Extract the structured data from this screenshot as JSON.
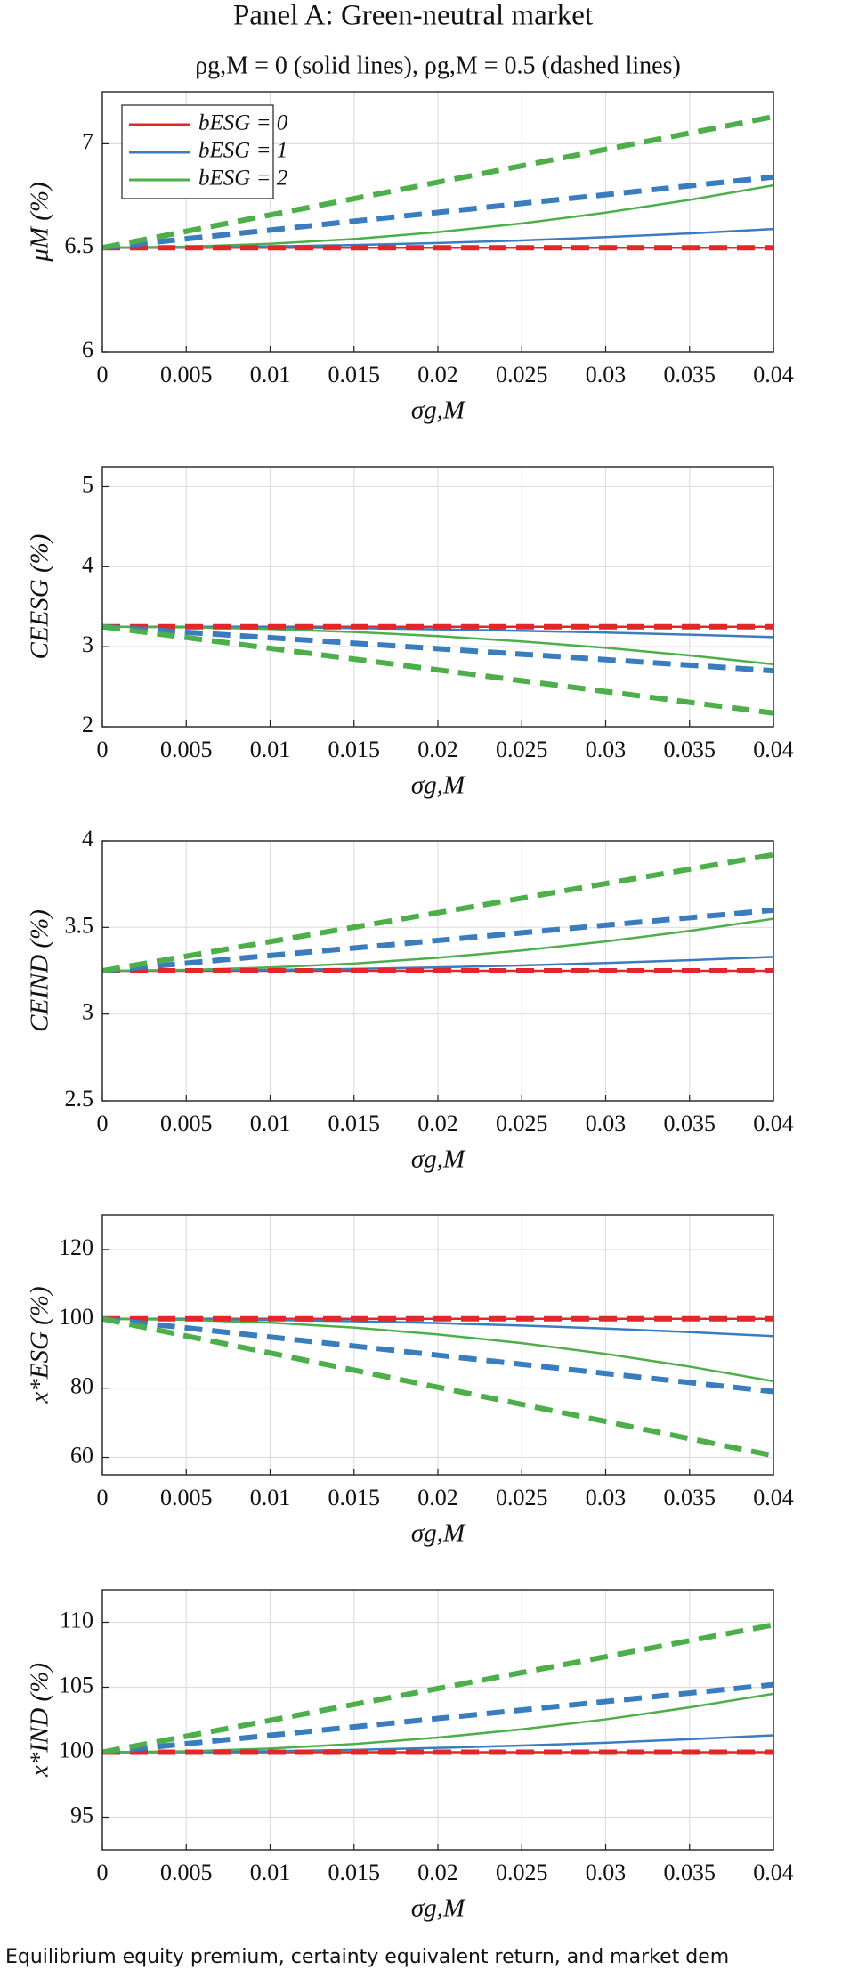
{
  "title": "Panel A: Green-neutral market",
  "subtitle": "ρg,M = 0 (solid lines), ρg,M = 0.5 (dashed lines)",
  "caption": "Equilibrium equity premium, certainty equivalent return, and market dem",
  "chart_data": [
    {
      "type": "line",
      "ylabel": "μM (%)",
      "xlabel": "σg,M",
      "x": [
        0,
        0.005,
        0.01,
        0.015,
        0.02,
        0.025,
        0.03,
        0.035,
        0.04
      ],
      "xlim": [
        0,
        0.04
      ],
      "xticks": [
        0,
        0.005,
        0.01,
        0.015,
        0.02,
        0.025,
        0.03,
        0.035,
        0.04
      ],
      "ylim": [
        6,
        7.25
      ],
      "yticks": [
        6,
        6.5,
        7
      ],
      "grid": true,
      "legend": "upper left",
      "series": [
        {
          "name": "bESG = 0",
          "color": "#e3262a",
          "dashed": false,
          "values": [
            6.5,
            6.5,
            6.5,
            6.5,
            6.5,
            6.5,
            6.5,
            6.5,
            6.5
          ]
        },
        {
          "name": "bESG = 1",
          "color": "#3a7dbf",
          "dashed": false,
          "values": [
            6.5,
            6.501,
            6.506,
            6.513,
            6.523,
            6.535,
            6.551,
            6.569,
            6.59
          ]
        },
        {
          "name": "bESG = 2",
          "color": "#4daf4a",
          "dashed": false,
          "values": [
            6.5,
            6.505,
            6.519,
            6.542,
            6.575,
            6.617,
            6.669,
            6.73,
            6.8
          ]
        },
        {
          "color": "#e3262a",
          "dashed": true,
          "values": [
            6.5,
            6.5,
            6.5,
            6.5,
            6.5,
            6.5,
            6.5,
            6.5,
            6.5
          ]
        },
        {
          "color": "#3a7dbf",
          "dashed": true,
          "values": [
            6.5,
            6.543,
            6.585,
            6.628,
            6.67,
            6.713,
            6.755,
            6.798,
            6.84
          ]
        },
        {
          "color": "#4daf4a",
          "dashed": true,
          "values": [
            6.5,
            6.579,
            6.658,
            6.736,
            6.815,
            6.894,
            6.973,
            7.051,
            7.13
          ]
        }
      ]
    },
    {
      "type": "line",
      "ylabel": "CEESG (%)",
      "xlabel": "σg,M",
      "x": [
        0,
        0.005,
        0.01,
        0.015,
        0.02,
        0.025,
        0.03,
        0.035,
        0.04
      ],
      "xlim": [
        0,
        0.04
      ],
      "xticks": [
        0,
        0.005,
        0.01,
        0.015,
        0.02,
        0.025,
        0.03,
        0.035,
        0.04
      ],
      "ylim": [
        2,
        5.25
      ],
      "yticks": [
        2,
        3,
        4,
        5
      ],
      "grid": true,
      "series": [
        {
          "color": "#e3262a",
          "dashed": false,
          "values": [
            3.25,
            3.25,
            3.25,
            3.25,
            3.25,
            3.25,
            3.25,
            3.25,
            3.25
          ]
        },
        {
          "color": "#3a7dbf",
          "dashed": false,
          "values": [
            3.25,
            3.248,
            3.242,
            3.232,
            3.218,
            3.199,
            3.177,
            3.15,
            3.12
          ]
        },
        {
          "color": "#4daf4a",
          "dashed": false,
          "values": [
            3.25,
            3.243,
            3.221,
            3.184,
            3.133,
            3.066,
            2.986,
            2.89,
            2.78
          ]
        },
        {
          "color": "#e3262a",
          "dashed": true,
          "values": [
            3.25,
            3.25,
            3.25,
            3.25,
            3.25,
            3.25,
            3.25,
            3.25,
            3.25
          ]
        },
        {
          "color": "#3a7dbf",
          "dashed": true,
          "values": [
            3.25,
            3.181,
            3.113,
            3.044,
            2.975,
            2.906,
            2.838,
            2.769,
            2.7
          ]
        },
        {
          "color": "#4daf4a",
          "dashed": true,
          "values": [
            3.25,
            3.115,
            2.98,
            2.845,
            2.71,
            2.575,
            2.44,
            2.305,
            2.17
          ]
        }
      ]
    },
    {
      "type": "line",
      "ylabel": "CEIND (%)",
      "xlabel": "σg,M",
      "x": [
        0,
        0.005,
        0.01,
        0.015,
        0.02,
        0.025,
        0.03,
        0.035,
        0.04
      ],
      "xlim": [
        0,
        0.04
      ],
      "xticks": [
        0,
        0.005,
        0.01,
        0.015,
        0.02,
        0.025,
        0.03,
        0.035,
        0.04
      ],
      "ylim": [
        2.5,
        4
      ],
      "yticks": [
        2.5,
        3,
        3.5,
        4
      ],
      "grid": true,
      "series": [
        {
          "color": "#e3262a",
          "dashed": false,
          "values": [
            3.25,
            3.25,
            3.25,
            3.25,
            3.25,
            3.25,
            3.25,
            3.25,
            3.25
          ]
        },
        {
          "color": "#3a7dbf",
          "dashed": false,
          "values": [
            3.25,
            3.251,
            3.255,
            3.261,
            3.27,
            3.281,
            3.295,
            3.311,
            3.33
          ]
        },
        {
          "color": "#4daf4a",
          "dashed": false,
          "values": [
            3.25,
            3.255,
            3.269,
            3.292,
            3.325,
            3.367,
            3.419,
            3.48,
            3.55
          ]
        },
        {
          "color": "#e3262a",
          "dashed": true,
          "values": [
            3.25,
            3.25,
            3.25,
            3.25,
            3.25,
            3.25,
            3.25,
            3.25,
            3.25
          ]
        },
        {
          "color": "#3a7dbf",
          "dashed": true,
          "values": [
            3.25,
            3.294,
            3.338,
            3.381,
            3.425,
            3.469,
            3.513,
            3.556,
            3.6
          ]
        },
        {
          "color": "#4daf4a",
          "dashed": true,
          "values": [
            3.25,
            3.334,
            3.418,
            3.501,
            3.585,
            3.669,
            3.753,
            3.836,
            3.92
          ]
        }
      ]
    },
    {
      "type": "line",
      "ylabel": "x*ESG (%)",
      "xlabel": "σg,M",
      "x": [
        0,
        0.005,
        0.01,
        0.015,
        0.02,
        0.025,
        0.03,
        0.035,
        0.04
      ],
      "xlim": [
        0,
        0.04
      ],
      "xticks": [
        0,
        0.005,
        0.01,
        0.015,
        0.02,
        0.025,
        0.03,
        0.035,
        0.04
      ],
      "ylim": [
        55,
        130
      ],
      "yticks": [
        60,
        80,
        100,
        120
      ],
      "grid": true,
      "series": [
        {
          "color": "#e3262a",
          "dashed": false,
          "values": [
            100,
            100,
            100,
            100,
            100,
            100,
            100,
            100,
            100
          ]
        },
        {
          "color": "#3a7dbf",
          "dashed": false,
          "values": [
            100,
            99.92,
            99.69,
            99.3,
            98.75,
            98.05,
            97.19,
            96.17,
            95
          ]
        },
        {
          "color": "#4daf4a",
          "dashed": false,
          "values": [
            100,
            99.72,
            98.88,
            97.47,
            95.5,
            92.97,
            89.88,
            86.22,
            82
          ]
        },
        {
          "color": "#e3262a",
          "dashed": true,
          "values": [
            100,
            100,
            100,
            100,
            100,
            100,
            100,
            100,
            100
          ]
        },
        {
          "color": "#3a7dbf",
          "dashed": true,
          "values": [
            100,
            97.38,
            94.75,
            92.13,
            89.5,
            86.88,
            84.25,
            81.63,
            79
          ]
        },
        {
          "color": "#4daf4a",
          "dashed": true,
          "values": [
            100,
            95.06,
            90.13,
            85.19,
            80.25,
            75.31,
            70.38,
            65.44,
            60.5
          ]
        }
      ]
    },
    {
      "type": "line",
      "ylabel": "x*IND (%)",
      "xlabel": "σg,M",
      "x": [
        0,
        0.005,
        0.01,
        0.015,
        0.02,
        0.025,
        0.03,
        0.035,
        0.04
      ],
      "xlim": [
        0,
        0.04
      ],
      "xticks": [
        0,
        0.005,
        0.01,
        0.015,
        0.02,
        0.025,
        0.03,
        0.035,
        0.04
      ],
      "ylim": [
        92.5,
        112.5
      ],
      "yticks": [
        95,
        100,
        105,
        110
      ],
      "grid": true,
      "series": [
        {
          "color": "#e3262a",
          "dashed": false,
          "values": [
            100,
            100,
            100,
            100,
            100,
            100,
            100,
            100,
            100
          ]
        },
        {
          "color": "#3a7dbf",
          "dashed": false,
          "values": [
            100,
            100.02,
            100.08,
            100.18,
            100.33,
            100.51,
            100.73,
            101,
            101.3
          ]
        },
        {
          "color": "#4daf4a",
          "dashed": false,
          "values": [
            100,
            100.07,
            100.28,
            100.63,
            101.13,
            101.76,
            102.53,
            103.45,
            104.5
          ]
        },
        {
          "color": "#e3262a",
          "dashed": true,
          "values": [
            100,
            100,
            100,
            100,
            100,
            100,
            100,
            100,
            100
          ]
        },
        {
          "color": "#3a7dbf",
          "dashed": true,
          "values": [
            100,
            100.65,
            101.3,
            101.95,
            102.6,
            103.25,
            103.9,
            104.55,
            105.2
          ]
        },
        {
          "color": "#4daf4a",
          "dashed": true,
          "values": [
            100,
            101.23,
            102.45,
            103.68,
            104.9,
            106.13,
            107.35,
            108.58,
            109.8
          ]
        }
      ]
    }
  ]
}
